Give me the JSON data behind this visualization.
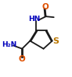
{
  "bg_color": "#ffffff",
  "bond_color": "#1a1a1a",
  "atom_colors": {
    "O": "#e05000",
    "N": "#0000bb",
    "S": "#bb7700",
    "C": "#1a1a1a"
  },
  "font_size": 6.5,
  "figsize": [
    0.92,
    0.99
  ],
  "dpi": 100,
  "lw": 1.3
}
